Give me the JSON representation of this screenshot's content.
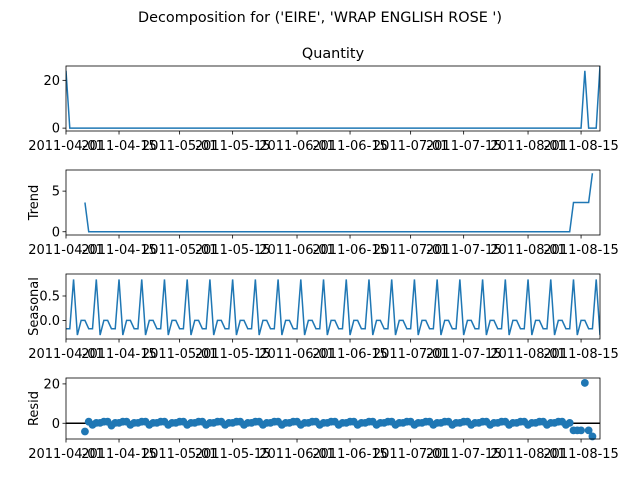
{
  "figure": {
    "suptitle": "Decomposition for ('EIRE', 'WRAP ENGLISH ROSE ')"
  },
  "chart_data": {
    "type": "line",
    "title": "Quantity",
    "x_start": "2011-04-01",
    "x_end": "2011-08-20",
    "date_ticks": [
      {
        "date": "2011-04-01",
        "label": "2011-04-01"
      },
      {
        "date": "2011-04-15",
        "label": "2011-04-15"
      },
      {
        "date": "2011-05-01",
        "label": "2011-05-01"
      },
      {
        "date": "2011-05-15",
        "label": "2011-05-15"
      },
      {
        "date": "2011-06-01",
        "label": "2011-06-01"
      },
      {
        "date": "2011-06-15",
        "label": "2011-06-15"
      },
      {
        "date": "2011-07-01",
        "label": "2011-07-01"
      },
      {
        "date": "2011-07-15",
        "label": "2011-07-15"
      },
      {
        "date": "2011-08-01",
        "label": "2011-08-01"
      },
      {
        "date": "2011-08-15",
        "label": "2011-08-15"
      }
    ],
    "panels": [
      {
        "name": "observed",
        "title": "Quantity",
        "ylabel": "",
        "ylim": [
          -1.2,
          26
        ],
        "yticks": [
          0,
          20
        ],
        "kind": "line",
        "points": [
          {
            "date": "2011-04-01",
            "value": 24
          },
          {
            "date": "2011-04-02",
            "value": 0
          },
          {
            "date": "2011-08-15",
            "value": 0
          },
          {
            "date": "2011-08-16",
            "value": 24
          },
          {
            "date": "2011-08-17",
            "value": 0
          },
          {
            "date": "2011-08-19",
            "value": 0
          },
          {
            "date": "2011-08-20",
            "value": 26
          }
        ]
      },
      {
        "name": "trend",
        "title": "",
        "ylabel": "Trend",
        "ylim": [
          -0.4,
          7.6
        ],
        "yticks": [
          0,
          5
        ],
        "kind": "line",
        "points": [
          {
            "date": "2011-04-06",
            "value": 3.6
          },
          {
            "date": "2011-04-07",
            "value": 0
          },
          {
            "date": "2011-08-12",
            "value": 0
          },
          {
            "date": "2011-08-13",
            "value": 3.6
          },
          {
            "date": "2011-08-17",
            "value": 3.6
          },
          {
            "date": "2011-08-18",
            "value": 7.2
          }
        ]
      },
      {
        "name": "seasonal",
        "title": "",
        "ylabel": "Seasonal",
        "ylim": [
          -0.38,
          0.95
        ],
        "yticks": [
          0.0,
          0.5
        ],
        "ytick_labels": [
          "0.0",
          "0.5"
        ],
        "kind": "line",
        "period_days": 6,
        "anchor_date": "2011-04-03",
        "pattern": [
          0.84,
          -0.3,
          0.0,
          0.0,
          -0.17,
          -0.17
        ]
      },
      {
        "name": "resid",
        "title": "",
        "ylabel": "Resid",
        "ylim": [
          -8,
          23
        ],
        "yticks": [
          0,
          20
        ],
        "kind": "scatter",
        "zero_line": true,
        "points": [
          {
            "date": "2011-04-06",
            "value": -4.2
          },
          {
            "date": "2011-04-07",
            "value": 0.8
          },
          {
            "date": "2011-04-08",
            "value": -0.8
          },
          {
            "date": "2011-04-09",
            "value": 0.2
          },
          {
            "date": "2011-04-10",
            "value": 0.2
          },
          {
            "date": "2011-04-11",
            "value": 0.8
          },
          {
            "date": "2011-04-12",
            "value": 0.8
          },
          {
            "date": "2011-04-13",
            "value": -1.2
          },
          {
            "date": "2011-04-14",
            "value": 0.2
          },
          {
            "date": "2011-04-15",
            "value": 0.2
          },
          {
            "date": "2011-04-16",
            "value": 0.8
          },
          {
            "date": "2011-04-17",
            "value": 0.8
          },
          {
            "date": "2011-04-18",
            "value": -0.8
          },
          {
            "date": "2011-04-19",
            "value": 0.2
          },
          {
            "date": "2011-04-20",
            "value": 0.2
          },
          {
            "date": "2011-04-21",
            "value": 0.8
          },
          {
            "date": "2011-04-22",
            "value": 0.8
          },
          {
            "date": "2011-04-23",
            "value": -0.8
          },
          {
            "date": "2011-04-24",
            "value": 0.2
          },
          {
            "date": "2011-04-25",
            "value": 0.2
          },
          {
            "date": "2011-04-26",
            "value": 0.8
          },
          {
            "date": "2011-04-27",
            "value": 0.8
          },
          {
            "date": "2011-04-28",
            "value": -0.8
          },
          {
            "date": "2011-04-29",
            "value": 0.2
          },
          {
            "date": "2011-04-30",
            "value": 0.2
          },
          {
            "date": "2011-05-01",
            "value": 0.8
          },
          {
            "date": "2011-05-02",
            "value": 0.8
          },
          {
            "date": "2011-05-03",
            "value": -0.8
          },
          {
            "date": "2011-05-04",
            "value": 0.2
          },
          {
            "date": "2011-05-05",
            "value": 0.2
          },
          {
            "date": "2011-05-06",
            "value": 0.8
          },
          {
            "date": "2011-05-07",
            "value": 0.8
          },
          {
            "date": "2011-05-08",
            "value": -0.8
          },
          {
            "date": "2011-05-09",
            "value": 0.2
          },
          {
            "date": "2011-05-10",
            "value": 0.2
          },
          {
            "date": "2011-05-11",
            "value": 0.8
          },
          {
            "date": "2011-05-12",
            "value": 0.8
          },
          {
            "date": "2011-05-13",
            "value": -0.8
          },
          {
            "date": "2011-05-14",
            "value": 0.2
          },
          {
            "date": "2011-05-15",
            "value": 0.2
          },
          {
            "date": "2011-05-16",
            "value": 0.8
          },
          {
            "date": "2011-05-17",
            "value": 0.8
          },
          {
            "date": "2011-05-18",
            "value": -0.8
          },
          {
            "date": "2011-05-19",
            "value": 0.2
          },
          {
            "date": "2011-05-20",
            "value": 0.2
          },
          {
            "date": "2011-05-21",
            "value": 0.8
          },
          {
            "date": "2011-05-22",
            "value": 0.8
          },
          {
            "date": "2011-05-23",
            "value": -0.8
          },
          {
            "date": "2011-05-24",
            "value": 0.2
          },
          {
            "date": "2011-05-25",
            "value": 0.2
          },
          {
            "date": "2011-05-26",
            "value": 0.8
          },
          {
            "date": "2011-05-27",
            "value": 0.8
          },
          {
            "date": "2011-05-28",
            "value": -0.8
          },
          {
            "date": "2011-05-29",
            "value": 0.2
          },
          {
            "date": "2011-05-30",
            "value": 0.2
          },
          {
            "date": "2011-05-31",
            "value": 0.8
          },
          {
            "date": "2011-06-01",
            "value": 0.8
          },
          {
            "date": "2011-06-02",
            "value": -0.8
          },
          {
            "date": "2011-06-03",
            "value": 0.2
          },
          {
            "date": "2011-06-04",
            "value": 0.2
          },
          {
            "date": "2011-06-05",
            "value": 0.8
          },
          {
            "date": "2011-06-06",
            "value": 0.8
          },
          {
            "date": "2011-06-07",
            "value": -0.8
          },
          {
            "date": "2011-06-08",
            "value": 0.2
          },
          {
            "date": "2011-06-09",
            "value": 0.2
          },
          {
            "date": "2011-06-10",
            "value": 0.8
          },
          {
            "date": "2011-06-11",
            "value": 0.8
          },
          {
            "date": "2011-06-12",
            "value": -0.8
          },
          {
            "date": "2011-06-13",
            "value": 0.2
          },
          {
            "date": "2011-06-14",
            "value": 0.2
          },
          {
            "date": "2011-06-15",
            "value": 0.8
          },
          {
            "date": "2011-06-16",
            "value": 0.8
          },
          {
            "date": "2011-06-17",
            "value": -0.8
          },
          {
            "date": "2011-06-18",
            "value": 0.2
          },
          {
            "date": "2011-06-19",
            "value": 0.2
          },
          {
            "date": "2011-06-20",
            "value": 0.8
          },
          {
            "date": "2011-06-21",
            "value": 0.8
          },
          {
            "date": "2011-06-22",
            "value": -0.8
          },
          {
            "date": "2011-06-23",
            "value": 0.2
          },
          {
            "date": "2011-06-24",
            "value": 0.2
          },
          {
            "date": "2011-06-25",
            "value": 0.8
          },
          {
            "date": "2011-06-26",
            "value": 0.8
          },
          {
            "date": "2011-06-27",
            "value": -0.8
          },
          {
            "date": "2011-06-28",
            "value": 0.2
          },
          {
            "date": "2011-06-29",
            "value": 0.2
          },
          {
            "date": "2011-06-30",
            "value": 0.8
          },
          {
            "date": "2011-07-01",
            "value": 0.8
          },
          {
            "date": "2011-07-02",
            "value": -0.8
          },
          {
            "date": "2011-07-03",
            "value": 0.2
          },
          {
            "date": "2011-07-04",
            "value": 0.2
          },
          {
            "date": "2011-07-05",
            "value": 0.8
          },
          {
            "date": "2011-07-06",
            "value": 0.8
          },
          {
            "date": "2011-07-07",
            "value": -0.8
          },
          {
            "date": "2011-07-08",
            "value": 0.2
          },
          {
            "date": "2011-07-09",
            "value": 0.2
          },
          {
            "date": "2011-07-10",
            "value": 0.8
          },
          {
            "date": "2011-07-11",
            "value": 0.8
          },
          {
            "date": "2011-07-12",
            "value": -0.8
          },
          {
            "date": "2011-07-13",
            "value": 0.2
          },
          {
            "date": "2011-07-14",
            "value": 0.2
          },
          {
            "date": "2011-07-15",
            "value": 0.8
          },
          {
            "date": "2011-07-16",
            "value": 0.8
          },
          {
            "date": "2011-07-17",
            "value": -0.8
          },
          {
            "date": "2011-07-18",
            "value": 0.2
          },
          {
            "date": "2011-07-19",
            "value": 0.2
          },
          {
            "date": "2011-07-20",
            "value": 0.8
          },
          {
            "date": "2011-07-21",
            "value": 0.8
          },
          {
            "date": "2011-07-22",
            "value": -0.8
          },
          {
            "date": "2011-07-23",
            "value": 0.2
          },
          {
            "date": "2011-07-24",
            "value": 0.2
          },
          {
            "date": "2011-07-25",
            "value": 0.8
          },
          {
            "date": "2011-07-26",
            "value": 0.8
          },
          {
            "date": "2011-07-27",
            "value": -0.8
          },
          {
            "date": "2011-07-28",
            "value": 0.2
          },
          {
            "date": "2011-07-29",
            "value": 0.2
          },
          {
            "date": "2011-07-30",
            "value": 0.8
          },
          {
            "date": "2011-07-31",
            "value": 0.8
          },
          {
            "date": "2011-08-01",
            "value": -0.8
          },
          {
            "date": "2011-08-02",
            "value": 0.2
          },
          {
            "date": "2011-08-03",
            "value": 0.2
          },
          {
            "date": "2011-08-04",
            "value": 0.8
          },
          {
            "date": "2011-08-05",
            "value": 0.8
          },
          {
            "date": "2011-08-06",
            "value": -0.8
          },
          {
            "date": "2011-08-07",
            "value": 0.2
          },
          {
            "date": "2011-08-08",
            "value": 0.2
          },
          {
            "date": "2011-08-09",
            "value": 0.8
          },
          {
            "date": "2011-08-10",
            "value": 0.8
          },
          {
            "date": "2011-08-11",
            "value": -0.8
          },
          {
            "date": "2011-08-12",
            "value": 0.2
          },
          {
            "date": "2011-08-13",
            "value": -3.6
          },
          {
            "date": "2011-08-14",
            "value": -3.6
          },
          {
            "date": "2011-08-15",
            "value": -3.6
          },
          {
            "date": "2011-08-16",
            "value": 20.5
          },
          {
            "date": "2011-08-17",
            "value": -3.6
          },
          {
            "date": "2011-08-18",
            "value": -6.7
          }
        ]
      }
    ]
  }
}
